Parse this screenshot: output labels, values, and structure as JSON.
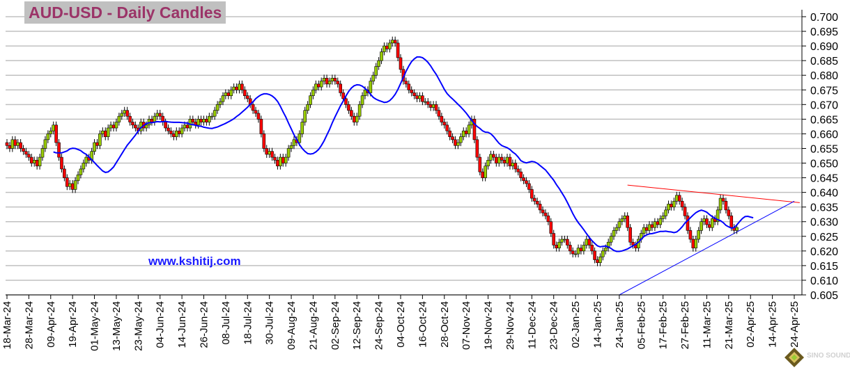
{
  "chart_data": {
    "type": "candlestick",
    "title": "AUD-USD - Daily Candles",
    "watermark": "www.kshitij.com",
    "logo_text": "SINO SOUND 漢聲集團",
    "colors": {
      "up": "#99cc00",
      "down": "#ff0000",
      "moving_average": "#0000ff",
      "resistance": "#ff0000",
      "support": "#0000ff",
      "title": "#9b3468",
      "title_bg": "#c0c0c0",
      "grid": "#c0c0c0"
    },
    "y_axis": {
      "position": "right",
      "min": 0.605,
      "max": 0.7,
      "step": 0.005,
      "ticks": [
        "0.605",
        "0.610",
        "0.615",
        "0.620",
        "0.625",
        "0.630",
        "0.635",
        "0.640",
        "0.645",
        "0.650",
        "0.655",
        "0.660",
        "0.665",
        "0.670",
        "0.675",
        "0.680",
        "0.685",
        "0.690",
        "0.695",
        "0.700"
      ]
    },
    "x_axis": {
      "ticks": [
        "18-Mar-24",
        "28-Mar-24",
        "09-Apr-24",
        "19-Apr-24",
        "01-May-24",
        "13-May-24",
        "23-May-24",
        "04-Jun-24",
        "14-Jun-24",
        "26-Jun-24",
        "08-Jul-24",
        "18-Jul-24",
        "30-Jul-24",
        "09-Aug-24",
        "21-Aug-24",
        "02-Sep-24",
        "12-Sep-24",
        "24-Sep-24",
        "04-Oct-24",
        "16-Oct-24",
        "28-Oct-24",
        "07-Nov-24",
        "19-Nov-24",
        "29-Nov-24",
        "11-Dec-24",
        "23-Dec-24",
        "02-Jan-25",
        "14-Jan-25",
        "24-Jan-25",
        "05-Feb-25",
        "17-Feb-25",
        "27-Feb-25",
        "11-Mar-25",
        "21-Mar-25",
        "02-Apr-25",
        "14-Apr-25",
        "24-Apr-25"
      ]
    },
    "grid": true,
    "start_date": "18-Mar-24",
    "closes": [
      0.656,
      0.655,
      0.658,
      0.656,
      0.657,
      0.655,
      0.654,
      0.653,
      0.652,
      0.65,
      0.651,
      0.649,
      0.652,
      0.655,
      0.658,
      0.66,
      0.661,
      0.663,
      0.657,
      0.652,
      0.648,
      0.645,
      0.642,
      0.643,
      0.641,
      0.644,
      0.646,
      0.648,
      0.65,
      0.652,
      0.651,
      0.654,
      0.657,
      0.656,
      0.66,
      0.661,
      0.659,
      0.662,
      0.663,
      0.662,
      0.664,
      0.666,
      0.667,
      0.668,
      0.666,
      0.664,
      0.663,
      0.662,
      0.661,
      0.664,
      0.662,
      0.663,
      0.665,
      0.664,
      0.666,
      0.667,
      0.666,
      0.664,
      0.662,
      0.661,
      0.66,
      0.659,
      0.661,
      0.66,
      0.662,
      0.663,
      0.662,
      0.665,
      0.664,
      0.663,
      0.665,
      0.664,
      0.665,
      0.664,
      0.666,
      0.666,
      0.668,
      0.67,
      0.671,
      0.673,
      0.674,
      0.673,
      0.675,
      0.676,
      0.675,
      0.677,
      0.675,
      0.673,
      0.672,
      0.67,
      0.668,
      0.667,
      0.665,
      0.66,
      0.655,
      0.653,
      0.654,
      0.652,
      0.651,
      0.649,
      0.652,
      0.65,
      0.652,
      0.655,
      0.656,
      0.658,
      0.657,
      0.66,
      0.664,
      0.668,
      0.67,
      0.673,
      0.675,
      0.677,
      0.676,
      0.678,
      0.679,
      0.677,
      0.678,
      0.679,
      0.678,
      0.677,
      0.674,
      0.672,
      0.67,
      0.668,
      0.666,
      0.664,
      0.666,
      0.67,
      0.673,
      0.675,
      0.674,
      0.678,
      0.68,
      0.683,
      0.685,
      0.688,
      0.69,
      0.689,
      0.691,
      0.692,
      0.691,
      0.686,
      0.682,
      0.678,
      0.677,
      0.675,
      0.674,
      0.673,
      0.672,
      0.673,
      0.671,
      0.671,
      0.67,
      0.669,
      0.67,
      0.668,
      0.666,
      0.664,
      0.663,
      0.661,
      0.659,
      0.658,
      0.656,
      0.657,
      0.659,
      0.661,
      0.66,
      0.663,
      0.665,
      0.658,
      0.652,
      0.647,
      0.645,
      0.649,
      0.651,
      0.653,
      0.652,
      0.65,
      0.652,
      0.651,
      0.65,
      0.652,
      0.649,
      0.65,
      0.648,
      0.647,
      0.645,
      0.644,
      0.643,
      0.641,
      0.638,
      0.637,
      0.636,
      0.634,
      0.633,
      0.632,
      0.63,
      0.626,
      0.622,
      0.621,
      0.623,
      0.624,
      0.624,
      0.622,
      0.62,
      0.619,
      0.619,
      0.621,
      0.62,
      0.622,
      0.624,
      0.622,
      0.62,
      0.617,
      0.616,
      0.618,
      0.62,
      0.621,
      0.623,
      0.625,
      0.627,
      0.628,
      0.63,
      0.631,
      0.632,
      0.628,
      0.623,
      0.622,
      0.621,
      0.624,
      0.626,
      0.628,
      0.627,
      0.629,
      0.628,
      0.63,
      0.629,
      0.631,
      0.632,
      0.634,
      0.636,
      0.635,
      0.637,
      0.639,
      0.637,
      0.635,
      0.632,
      0.627,
      0.624,
      0.621,
      0.624,
      0.627,
      0.63,
      0.631,
      0.629,
      0.628,
      0.631,
      0.63,
      0.634,
      0.638,
      0.637,
      0.634,
      0.632,
      0.628,
      0.627,
      0.628
    ],
    "trendlines": [
      {
        "name": "resistance",
        "color": "#ff0000",
        "start": {
          "date": "29-Jan-25",
          "price": 0.6425
        },
        "end": {
          "date": "28-Apr-25",
          "price": 0.6365
        }
      },
      {
        "name": "support",
        "color": "#0000ff",
        "start": {
          "date": "24-Jan-25",
          "price": 0.605
        },
        "end": {
          "date": "24-Apr-25",
          "price": 0.637
        }
      }
    ]
  }
}
